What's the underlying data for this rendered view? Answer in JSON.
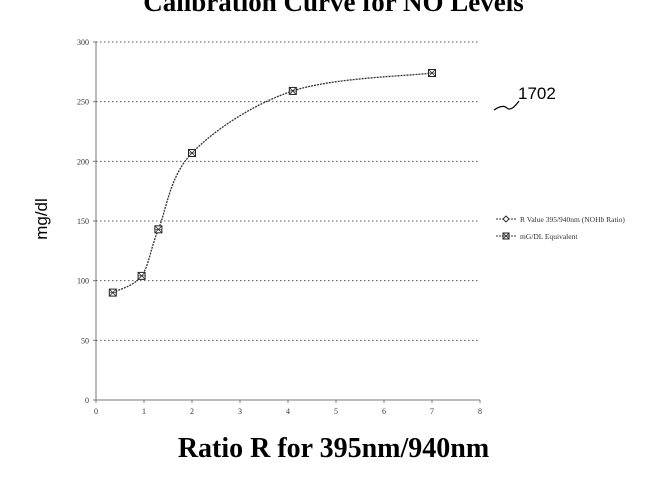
{
  "chart_data": {
    "type": "line",
    "title": "Calibration Curve for NO Levels",
    "xlabel": "Ratio R for 395nm/940nm",
    "ylabel": "mg/dl",
    "xlim": [
      0,
      8
    ],
    "ylim": [
      0,
      300
    ],
    "xticks": [
      "0",
      "1",
      "2",
      "3",
      "4",
      "5",
      "6",
      "7",
      "8"
    ],
    "yticks": [
      "0",
      "50",
      "100",
      "150",
      "200",
      "250",
      "300"
    ],
    "grid": "horizontal dotted",
    "legend_position": "right",
    "series": [
      {
        "name": "R Value 395/940nm (NOHb Ratio)",
        "marker": "diamond",
        "values": []
      },
      {
        "name": "mG/DL Equivalent",
        "marker": "crossed-square",
        "x": [
          0.35,
          0.95,
          1.3,
          2.0,
          4.1,
          7.0
        ],
        "y": [
          90,
          104,
          143,
          207,
          259,
          274
        ]
      }
    ],
    "annotation": "1702"
  }
}
